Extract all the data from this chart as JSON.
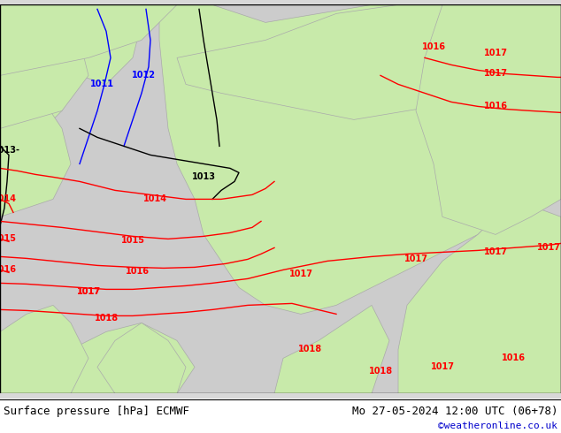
{
  "title_left": "Surface pressure [hPa] ECMWF",
  "title_right": "Mo 27-05-2024 12:00 UTC (06+78)",
  "credit": "©weatheronline.co.uk",
  "bg_color": "#d8d8d8",
  "land_color": "#c8eaaa",
  "sea_color": "#e8e8e8",
  "fig_width": 6.34,
  "fig_height": 4.9,
  "dpi": 100,
  "bottom_bar_color": "#ffffff",
  "bottom_bar_height": 0.08,
  "title_fontsize": 10,
  "credit_color": "#0000cc",
  "isobar_color_red": "#ff0000",
  "isobar_color_black": "#000000",
  "isobar_color_blue": "#0000ff"
}
